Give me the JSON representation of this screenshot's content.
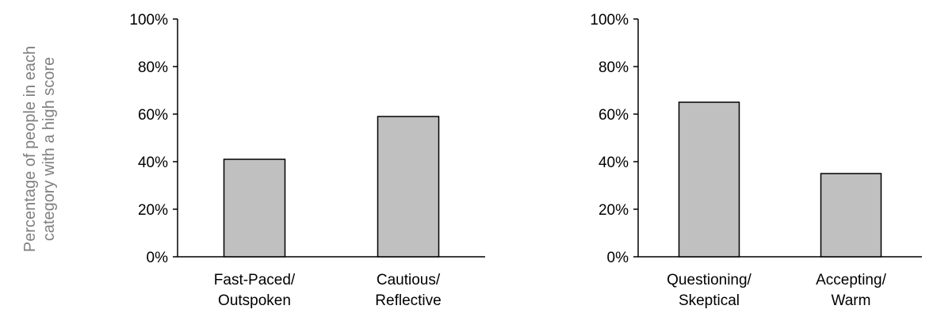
{
  "chart_data": [
    {
      "type": "bar",
      "ylabel_lines": [
        "Percentage of people in each",
        "category with a high score"
      ],
      "categories": [
        [
          "Fast-Paced/",
          "Outspoken"
        ],
        [
          "Cautious/",
          "Reflective"
        ]
      ],
      "values": [
        41,
        59
      ],
      "ylim": [
        0,
        100
      ],
      "yticks": [
        "0%",
        "20%",
        "40%",
        "60%",
        "80%",
        "100%"
      ],
      "grid": false,
      "bar_color": "#c0c0c0"
    },
    {
      "type": "bar",
      "categories": [
        [
          "Questioning/",
          "Skeptical"
        ],
        [
          "Accepting/",
          "Warm"
        ]
      ],
      "values": [
        65,
        35
      ],
      "ylim": [
        0,
        100
      ],
      "yticks": [
        "0%",
        "20%",
        "40%",
        "60%",
        "80%",
        "100%"
      ],
      "grid": false,
      "bar_color": "#c0c0c0"
    }
  ]
}
